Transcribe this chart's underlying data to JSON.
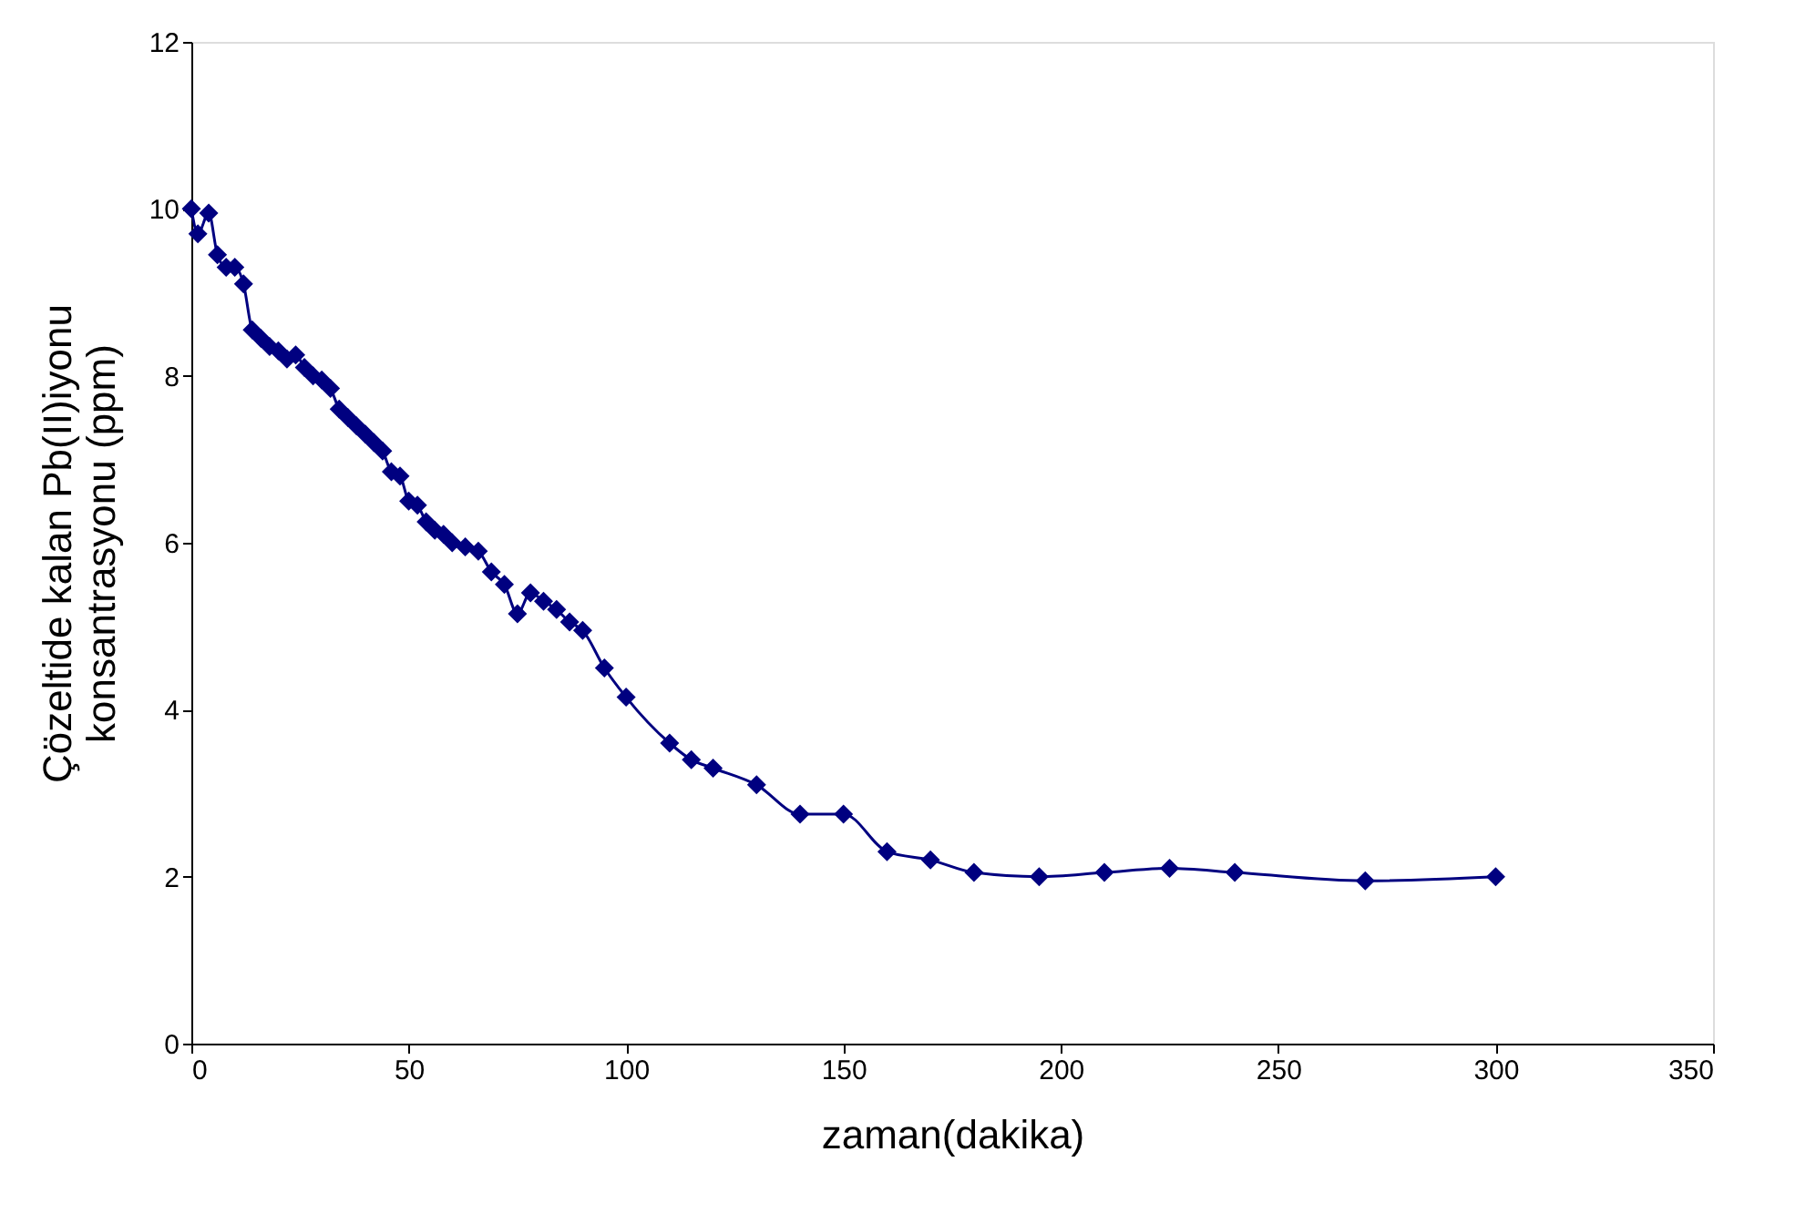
{
  "chart_data": {
    "type": "line",
    "xlabel": "zaman(dakika)",
    "ylabel": "Çözeltide kalan Pb(II)iyonu\nkonsantrasyonu (ppm)",
    "x": [
      0,
      1.5,
      4,
      6,
      8,
      10,
      12,
      14,
      16,
      18,
      20,
      22,
      24,
      26,
      28,
      30,
      32,
      34,
      36,
      38,
      40,
      42,
      44,
      46,
      48,
      50,
      52,
      54,
      56,
      58,
      60,
      63,
      66,
      69,
      72,
      75,
      78,
      81,
      84,
      87,
      90,
      95,
      100,
      110,
      115,
      120,
      130,
      140,
      150,
      160,
      170,
      180,
      195,
      210,
      225,
      240,
      270,
      300
    ],
    "series": [
      {
        "color": "#000080",
        "values": [
          10.0,
          9.7,
          9.95,
          9.45,
          9.3,
          9.3,
          9.1,
          8.55,
          8.45,
          8.35,
          8.3,
          8.2,
          8.25,
          8.1,
          8.0,
          7.95,
          7.85,
          7.6,
          7.5,
          7.4,
          7.3,
          7.2,
          7.1,
          6.85,
          6.8,
          6.5,
          6.45,
          6.25,
          6.15,
          6.1,
          6.0,
          5.95,
          5.9,
          5.65,
          5.5,
          5.15,
          5.4,
          5.3,
          5.2,
          5.05,
          4.95,
          4.5,
          4.15,
          3.6,
          3.4,
          3.3,
          3.1,
          2.75,
          2.75,
          2.3,
          2.2,
          2.05,
          2.0,
          2.05,
          2.1,
          2.05,
          1.95,
          2.0
        ]
      }
    ],
    "xlim": [
      0,
      350
    ],
    "xticks": [
      0,
      50,
      100,
      150,
      200,
      250,
      300,
      350
    ],
    "ylim": [
      0,
      12
    ],
    "yticks": [
      0,
      2,
      4,
      6,
      8,
      10,
      12
    ],
    "marker": "diamond",
    "line_style": "solid",
    "grid": false,
    "legend": false
  }
}
